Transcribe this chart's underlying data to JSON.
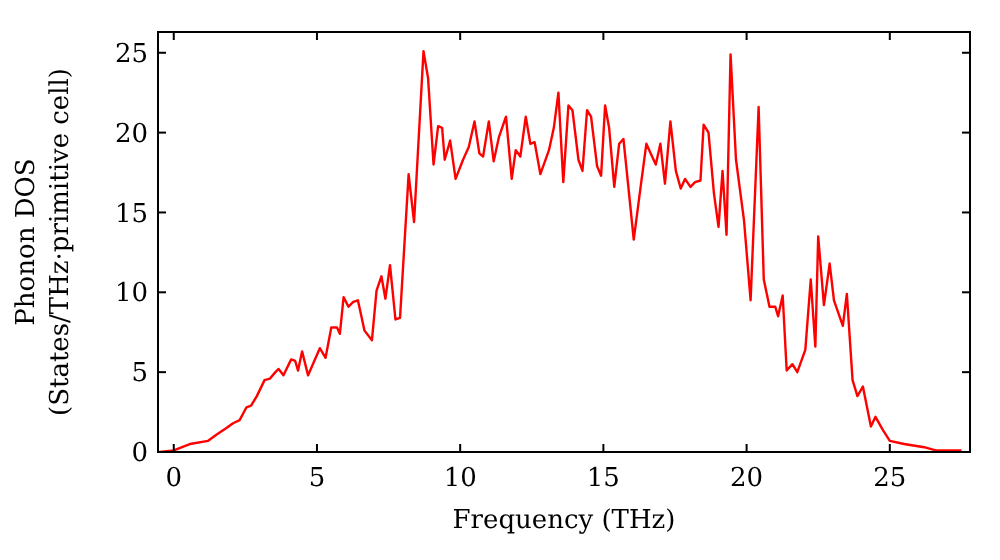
{
  "chart_data": {
    "type": "line",
    "xlabel": "Frequency (THz)",
    "ylabel": "Phonon DOS\n(States/THz·primitive cell)",
    "xlim": [
      -0.55,
      27.8
    ],
    "ylim": [
      0,
      26.3
    ],
    "xticks": [
      0,
      5,
      10,
      15,
      20,
      25
    ],
    "yticks": [
      0,
      5,
      10,
      15,
      20,
      25
    ],
    "grid": false,
    "marker": "none",
    "line_style": "solid",
    "series": [
      {
        "color": "#ff0000",
        "x": [
          -0.5,
          0,
          0.56,
          1.2,
          1.5,
          1.84,
          2.07,
          2.3,
          2.54,
          2.7,
          2.9,
          3.17,
          3.36,
          3.55,
          3.66,
          3.83,
          4.1,
          4.24,
          4.34,
          4.48,
          4.69,
          5.1,
          5.3,
          5.5,
          5.7,
          5.8,
          5.93,
          6.1,
          6.27,
          6.43,
          6.66,
          6.92,
          7.08,
          7.25,
          7.39,
          7.55,
          7.74,
          7.9,
          8.2,
          8.39,
          8.72,
          8.88,
          9.07,
          9.23,
          9.37,
          9.46,
          9.65,
          9.84,
          10.1,
          10.3,
          10.5,
          10.67,
          10.8,
          11.0,
          11.17,
          11.35,
          11.56,
          11.6,
          11.8,
          11.94,
          12.1,
          12.29,
          12.45,
          12.6,
          12.8,
          13.1,
          13.27,
          13.43,
          13.6,
          13.78,
          13.92,
          14.13,
          14.27,
          14.43,
          14.57,
          14.78,
          14.92,
          15.06,
          15.2,
          15.38,
          15.55,
          15.7,
          16.06,
          16.3,
          16.5,
          16.7,
          16.83,
          16.99,
          17.15,
          17.34,
          17.53,
          17.7,
          17.85,
          18.04,
          18.2,
          18.39,
          18.5,
          18.67,
          18.86,
          19.02,
          19.16,
          19.3,
          19.44,
          19.63,
          19.91,
          20.14,
          20.42,
          20.6,
          20.8,
          21.0,
          21.1,
          21.26,
          21.4,
          21.6,
          21.77,
          22.05,
          22.24,
          22.4,
          22.5,
          22.7,
          22.9,
          23.05,
          23.36,
          23.5,
          23.7,
          23.87,
          24.06,
          24.34,
          24.5,
          24.75,
          25.0,
          25.5,
          26.2,
          26.6,
          27.5
        ],
        "values": [
          0,
          0.1,
          0.5,
          0.7,
          1.1,
          1.5,
          1.8,
          2.0,
          2.8,
          2.9,
          3.5,
          4.5,
          4.6,
          5.0,
          5.2,
          4.8,
          5.8,
          5.7,
          5.1,
          6.3,
          4.8,
          6.5,
          5.9,
          7.8,
          7.8,
          7.4,
          9.7,
          9.1,
          9.4,
          9.5,
          7.6,
          7.0,
          10.1,
          11.0,
          9.6,
          11.7,
          8.3,
          8.4,
          17.4,
          14.4,
          25.1,
          23.4,
          18.0,
          20.4,
          20.3,
          18.3,
          19.5,
          17.1,
          18.3,
          19.1,
          20.7,
          18.7,
          18.5,
          20.7,
          18.2,
          19.7,
          20.8,
          21.0,
          17.1,
          18.9,
          18.5,
          21.0,
          19.3,
          19.4,
          17.4,
          18.9,
          20.3,
          22.5,
          16.9,
          21.7,
          21.4,
          18.3,
          17.6,
          21.4,
          21.0,
          17.9,
          17.3,
          21.7,
          20.3,
          16.6,
          19.3,
          19.6,
          13.3,
          16.6,
          19.3,
          18.5,
          18.0,
          19.3,
          16.8,
          20.7,
          17.6,
          16.5,
          17.1,
          16.6,
          16.9,
          17.0,
          20.5,
          20.0,
          16.2,
          14.1,
          17.6,
          13.6,
          24.9,
          18.3,
          14.5,
          9.5,
          21.6,
          10.8,
          9.1,
          9.1,
          8.5,
          9.8,
          5.1,
          5.5,
          5.0,
          6.4,
          10.8,
          6.6,
          13.5,
          9.2,
          11.8,
          9.5,
          7.9,
          9.9,
          4.5,
          3.5,
          4.1,
          1.6,
          2.2,
          1.4,
          0.7,
          0.5,
          0.3,
          0.1,
          0.1
        ]
      }
    ]
  }
}
